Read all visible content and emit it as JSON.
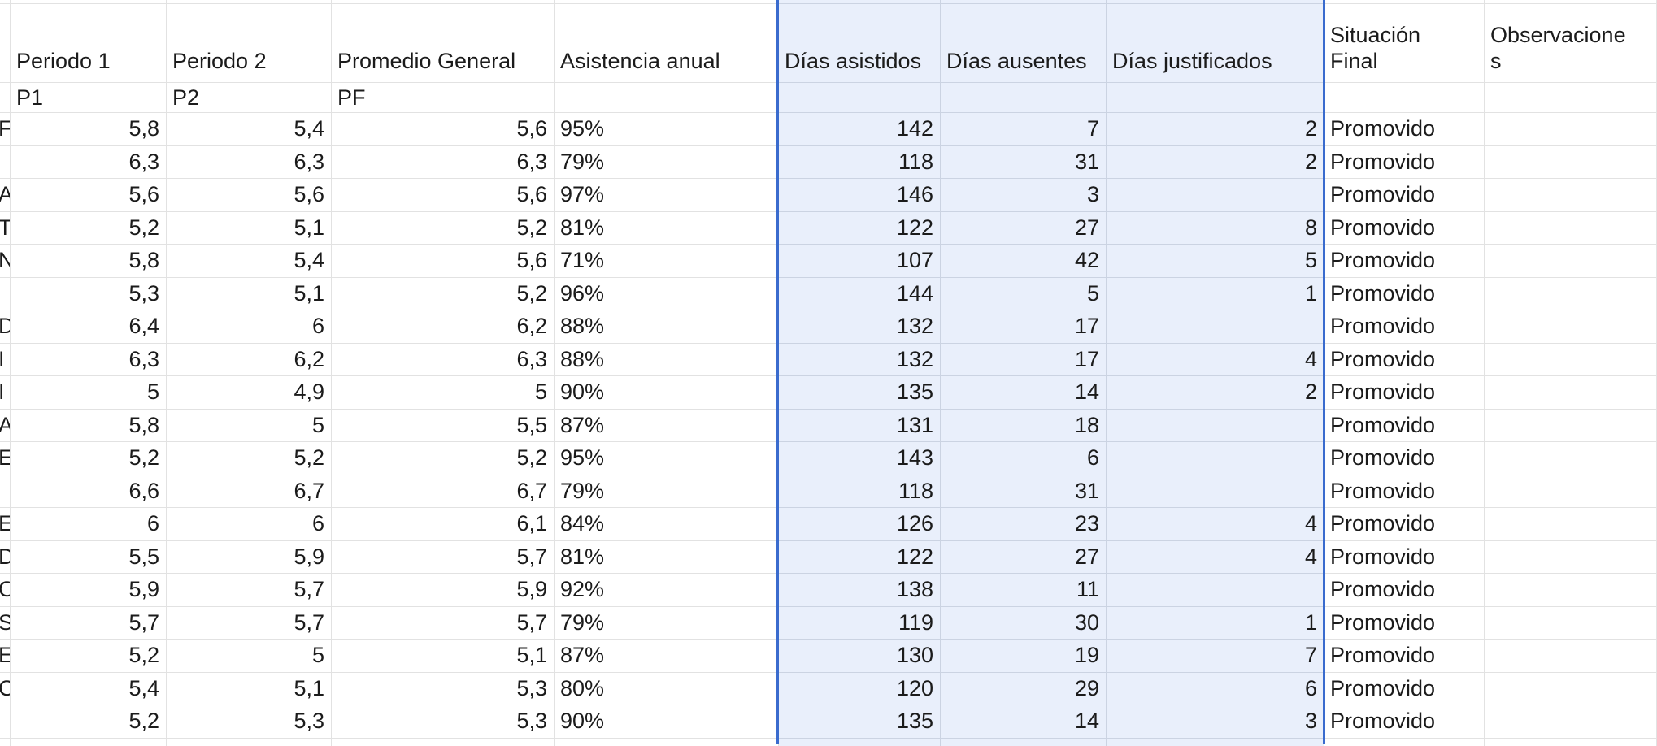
{
  "app": {
    "type": "spreadsheet-grid",
    "language": "es"
  },
  "colors": {
    "selection_fill": "#e9effb",
    "selection_border": "#3a6bce",
    "selection_gridline": "#cbd3e2",
    "gridline": "#e2e2e2",
    "text": "#1b1b1b",
    "background": "#ffffff"
  },
  "sheet": {
    "columns": [
      {
        "key": "name_fragment",
        "label": "",
        "sub": "",
        "selected": false
      },
      {
        "key": "periodo1",
        "label": "Periodo 1",
        "sub": "P1",
        "selected": false
      },
      {
        "key": "periodo2",
        "label": "Periodo 2",
        "sub": "P2",
        "selected": false
      },
      {
        "key": "promedio_general",
        "label": "Promedio General",
        "sub": "PF",
        "selected": false
      },
      {
        "key": "asistencia_anual",
        "label": "Asistencia anual",
        "sub": "",
        "selected": false
      },
      {
        "key": "dias_asistidos",
        "label": "Días asistidos",
        "sub": "",
        "selected": true
      },
      {
        "key": "dias_ausentes",
        "label": "Días ausentes",
        "sub": "",
        "selected": true
      },
      {
        "key": "dias_justificados",
        "label": "Días justificados",
        "sub": "",
        "selected": true
      },
      {
        "key": "situacion_final",
        "label": "Situación\nFinal",
        "sub": "",
        "selected": false
      },
      {
        "key": "observaciones",
        "label": "Observacione\ns",
        "sub": "",
        "selected": false
      }
    ],
    "rows": [
      {
        "name_fragment": "F",
        "periodo1": "5,8",
        "periodo2": "5,4",
        "promedio_general": "5,6",
        "asistencia_anual": "95%",
        "dias_asistidos": "142",
        "dias_ausentes": "7",
        "dias_justificados": "2",
        "situacion_final": "Promovido",
        "observaciones": ""
      },
      {
        "name_fragment": "",
        "periodo1": "6,3",
        "periodo2": "6,3",
        "promedio_general": "6,3",
        "asistencia_anual": "79%",
        "dias_asistidos": "118",
        "dias_ausentes": "31",
        "dias_justificados": "2",
        "situacion_final": "Promovido",
        "observaciones": ""
      },
      {
        "name_fragment": "A",
        "periodo1": "5,6",
        "periodo2": "5,6",
        "promedio_general": "5,6",
        "asistencia_anual": "97%",
        "dias_asistidos": "146",
        "dias_ausentes": "3",
        "dias_justificados": "",
        "situacion_final": "Promovido",
        "observaciones": ""
      },
      {
        "name_fragment": "T",
        "periodo1": "5,2",
        "periodo2": "5,1",
        "promedio_general": "5,2",
        "asistencia_anual": "81%",
        "dias_asistidos": "122",
        "dias_ausentes": "27",
        "dias_justificados": "8",
        "situacion_final": "Promovido",
        "observaciones": ""
      },
      {
        "name_fragment": "N",
        "periodo1": "5,8",
        "periodo2": "5,4",
        "promedio_general": "5,6",
        "asistencia_anual": "71%",
        "dias_asistidos": "107",
        "dias_ausentes": "42",
        "dias_justificados": "5",
        "situacion_final": "Promovido",
        "observaciones": ""
      },
      {
        "name_fragment": "",
        "periodo1": "5,3",
        "periodo2": "5,1",
        "promedio_general": "5,2",
        "asistencia_anual": "96%",
        "dias_asistidos": "144",
        "dias_ausentes": "5",
        "dias_justificados": "1",
        "situacion_final": "Promovido",
        "observaciones": ""
      },
      {
        "name_fragment": "D",
        "periodo1": "6,4",
        "periodo2": "6",
        "promedio_general": "6,2",
        "asistencia_anual": "88%",
        "dias_asistidos": "132",
        "dias_ausentes": "17",
        "dias_justificados": "",
        "situacion_final": "Promovido",
        "observaciones": ""
      },
      {
        "name_fragment": "I",
        "periodo1": "6,3",
        "periodo2": "6,2",
        "promedio_general": "6,3",
        "asistencia_anual": "88%",
        "dias_asistidos": "132",
        "dias_ausentes": "17",
        "dias_justificados": "4",
        "situacion_final": "Promovido",
        "observaciones": ""
      },
      {
        "name_fragment": "I",
        "periodo1": "5",
        "periodo2": "4,9",
        "promedio_general": "5",
        "asistencia_anual": "90%",
        "dias_asistidos": "135",
        "dias_ausentes": "14",
        "dias_justificados": "2",
        "situacion_final": "Promovido",
        "observaciones": ""
      },
      {
        "name_fragment": "A",
        "periodo1": "5,8",
        "periodo2": "5",
        "promedio_general": "5,5",
        "asistencia_anual": "87%",
        "dias_asistidos": "131",
        "dias_ausentes": "18",
        "dias_justificados": "",
        "situacion_final": "Promovido",
        "observaciones": ""
      },
      {
        "name_fragment": "E",
        "periodo1": "5,2",
        "periodo2": "5,2",
        "promedio_general": "5,2",
        "asistencia_anual": "95%",
        "dias_asistidos": "143",
        "dias_ausentes": "6",
        "dias_justificados": "",
        "situacion_final": "Promovido",
        "observaciones": ""
      },
      {
        "name_fragment": "",
        "periodo1": "6,6",
        "periodo2": "6,7",
        "promedio_general": "6,7",
        "asistencia_anual": "79%",
        "dias_asistidos": "118",
        "dias_ausentes": "31",
        "dias_justificados": "",
        "situacion_final": "Promovido",
        "observaciones": ""
      },
      {
        "name_fragment": "E",
        "periodo1": "6",
        "periodo2": "6",
        "promedio_general": "6,1",
        "asistencia_anual": "84%",
        "dias_asistidos": "126",
        "dias_ausentes": "23",
        "dias_justificados": "4",
        "situacion_final": "Promovido",
        "observaciones": ""
      },
      {
        "name_fragment": "D",
        "periodo1": "5,5",
        "periodo2": "5,9",
        "promedio_general": "5,7",
        "asistencia_anual": "81%",
        "dias_asistidos": "122",
        "dias_ausentes": "27",
        "dias_justificados": "4",
        "situacion_final": "Promovido",
        "observaciones": ""
      },
      {
        "name_fragment": "O",
        "periodo1": "5,9",
        "periodo2": "5,7",
        "promedio_general": "5,9",
        "asistencia_anual": "92%",
        "dias_asistidos": "138",
        "dias_ausentes": "11",
        "dias_justificados": "",
        "situacion_final": "Promovido",
        "observaciones": ""
      },
      {
        "name_fragment": "S",
        "periodo1": "5,7",
        "periodo2": "5,7",
        "promedio_general": "5,7",
        "asistencia_anual": "79%",
        "dias_asistidos": "119",
        "dias_ausentes": "30",
        "dias_justificados": "1",
        "situacion_final": "Promovido",
        "observaciones": ""
      },
      {
        "name_fragment": "E",
        "periodo1": "5,2",
        "periodo2": "5",
        "promedio_general": "5,1",
        "asistencia_anual": "87%",
        "dias_asistidos": "130",
        "dias_ausentes": "19",
        "dias_justificados": "7",
        "situacion_final": "Promovido",
        "observaciones": ""
      },
      {
        "name_fragment": "C",
        "periodo1": "5,4",
        "periodo2": "5,1",
        "promedio_general": "5,3",
        "asistencia_anual": "80%",
        "dias_asistidos": "120",
        "dias_ausentes": "29",
        "dias_justificados": "6",
        "situacion_final": "Promovido",
        "observaciones": ""
      },
      {
        "name_fragment": "",
        "periodo1": "5,2",
        "periodo2": "5,3",
        "promedio_general": "5,3",
        "asistencia_anual": "90%",
        "dias_asistidos": "135",
        "dias_ausentes": "14",
        "dias_justificados": "3",
        "situacion_final": "Promovido",
        "observaciones": ""
      }
    ]
  }
}
